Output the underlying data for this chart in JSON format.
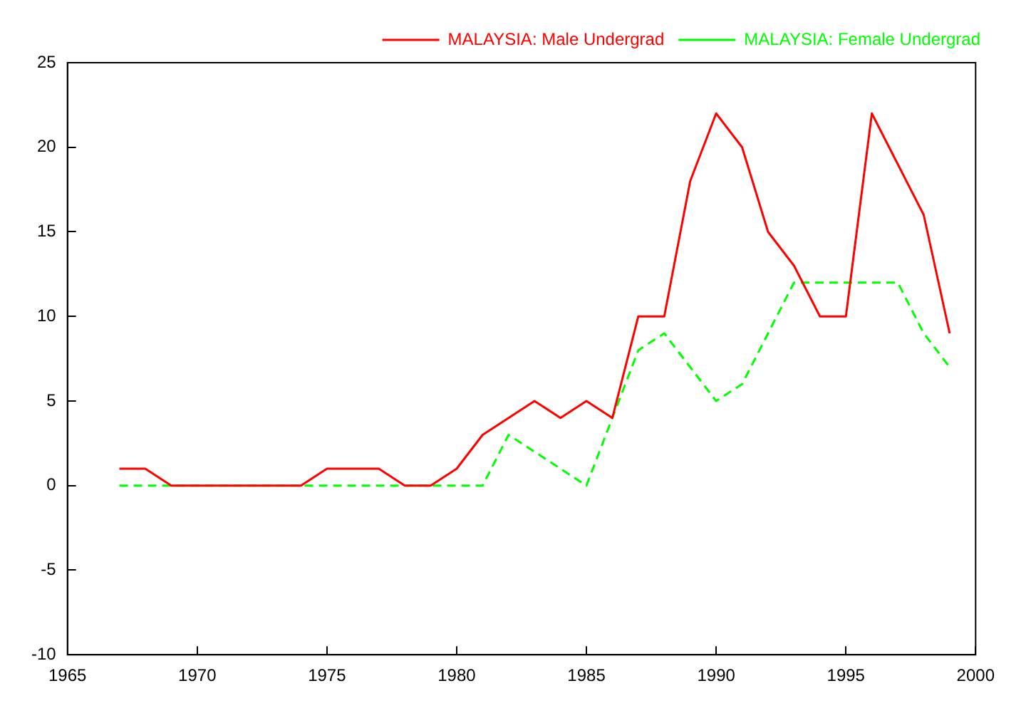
{
  "chart_data": {
    "type": "line",
    "x": [
      1967,
      1968,
      1969,
      1970,
      1971,
      1972,
      1973,
      1974,
      1975,
      1976,
      1977,
      1978,
      1979,
      1980,
      1981,
      1982,
      1983,
      1984,
      1985,
      1986,
      1987,
      1988,
      1989,
      1990,
      1991,
      1992,
      1993,
      1994,
      1995,
      1996,
      1997,
      1998,
      1999
    ],
    "series": [
      {
        "name": "MALAYSIA: Male Undergrad",
        "color": "#ff0000",
        "line_style": "solid",
        "values": [
          1,
          1,
          0,
          0,
          0,
          0,
          0,
          0,
          1,
          1,
          1,
          0,
          0,
          1,
          3,
          4,
          5,
          4,
          5,
          4,
          10,
          10,
          18,
          22,
          20,
          15,
          13,
          10,
          10,
          22,
          19,
          16,
          9
        ]
      },
      {
        "name": "MALAYSIA: Female Undergrad",
        "color": "#00ff00",
        "line_style": "dashed",
        "values": [
          0,
          0,
          0,
          0,
          0,
          0,
          0,
          0,
          0,
          0,
          0,
          0,
          0,
          0,
          0,
          3,
          2,
          1,
          0,
          4,
          8,
          9,
          7,
          5,
          6,
          9,
          12,
          12,
          12,
          12,
          12,
          9,
          7
        ]
      }
    ],
    "xlim": [
      1965,
      2000
    ],
    "xticks": [
      1965,
      1970,
      1975,
      1980,
      1985,
      1990,
      1995,
      2000
    ],
    "ylim": [
      -10,
      25
    ],
    "yticks": [
      -10,
      -5,
      0,
      5,
      10,
      15,
      20,
      25
    ],
    "grid": false,
    "legend": "top right",
    "marker": "none"
  }
}
